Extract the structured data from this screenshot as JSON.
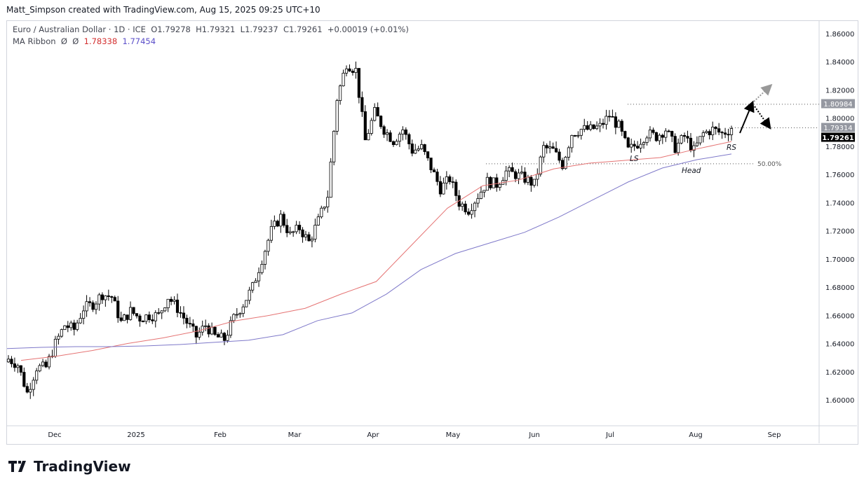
{
  "header": {
    "credit": "Matt_Simpson created with TradingView.com, Aug 15, 2025 09:25 UTC+10"
  },
  "legend": {
    "symbol": "Euro / Australian Dollar · 1D · ICE",
    "open": "O1.79278",
    "high": "H1.79321",
    "low": "L1.79237",
    "close": "C1.79261",
    "change": "+0.00019 (+0.01%)",
    "indicator": "MA Ribbon",
    "ind_params": "Ø  Ø",
    "ma1": "1.78338",
    "ma2": "1.77454"
  },
  "colors": {
    "ma1": "#e57373",
    "ma2": "#7e78c9",
    "up": "#ffffff",
    "down": "#000000"
  },
  "chart_data": {
    "type": "candlestick",
    "ylim": [
      1.585,
      1.87
    ],
    "y_ticks": [
      "1.86000",
      "1.84000",
      "1.82000",
      "1.80000",
      "1.78000",
      "1.76000",
      "1.74000",
      "1.72000",
      "1.70000",
      "1.68000",
      "1.66000",
      "1.64000",
      "1.62000",
      "1.60000"
    ],
    "x_ticks": [
      "Dec",
      "2025",
      "Feb",
      "Mar",
      "Apr",
      "May",
      "Jun",
      "Jul",
      "Aug",
      "Sep"
    ],
    "closes": [
      1.629,
      1.625,
      1.605,
      1.623,
      1.623,
      1.64,
      1.653,
      1.65,
      1.665,
      1.668,
      1.675,
      1.673,
      1.655,
      1.663,
      1.658,
      1.66,
      1.66,
      1.673,
      1.665,
      1.655,
      1.645,
      1.653,
      1.645,
      1.643,
      1.658,
      1.668,
      1.68,
      1.7,
      1.72,
      1.73,
      1.717,
      1.722,
      1.712,
      1.727,
      1.745,
      1.814,
      1.839,
      1.834,
      1.784,
      1.804,
      1.792,
      1.784,
      1.792,
      1.777,
      1.779,
      1.765,
      1.75,
      1.757,
      1.74,
      1.735,
      1.745,
      1.755,
      1.753,
      1.762,
      1.76,
      1.757,
      1.753,
      1.779,
      1.777,
      1.767,
      1.789,
      1.792,
      1.792,
      1.794,
      1.802,
      1.794,
      1.777,
      1.782,
      1.789,
      1.787,
      1.792,
      1.779,
      1.787,
      1.777,
      1.789,
      1.792,
      1.789,
      1.79261
    ],
    "ma1": [
      1.628,
      1.631,
      1.635,
      1.64,
      1.644,
      1.649,
      1.656,
      1.66,
      1.665,
      1.675,
      1.684,
      1.71,
      1.736,
      1.752,
      1.756,
      1.764,
      1.768,
      1.77,
      1.772,
      1.778,
      1.78338
    ],
    "ma2": [
      1.6364,
      1.6373,
      1.6378,
      1.6378,
      1.6383,
      1.6393,
      1.6408,
      1.6423,
      1.6463,
      1.6562,
      1.6617,
      1.6751,
      1.6925,
      1.7039,
      1.7114,
      1.7189,
      1.7298,
      1.7422,
      1.7546,
      1.7646,
      1.7705,
      1.77454
    ],
    "price_labels": [
      {
        "value": "1.80984",
        "bg": "#9598a1"
      },
      {
        "value": "1.79314",
        "bg": "#9598a1"
      },
      {
        "value": "1.79261",
        "bg": "#000000"
      }
    ],
    "levels": [
      1.80984,
      1.79314
    ],
    "fib": {
      "label": "50.00%",
      "value": 1.7676
    },
    "annotations": [
      "LS",
      "Head",
      "RS"
    ]
  },
  "footer": {
    "logo": "TradingView"
  }
}
